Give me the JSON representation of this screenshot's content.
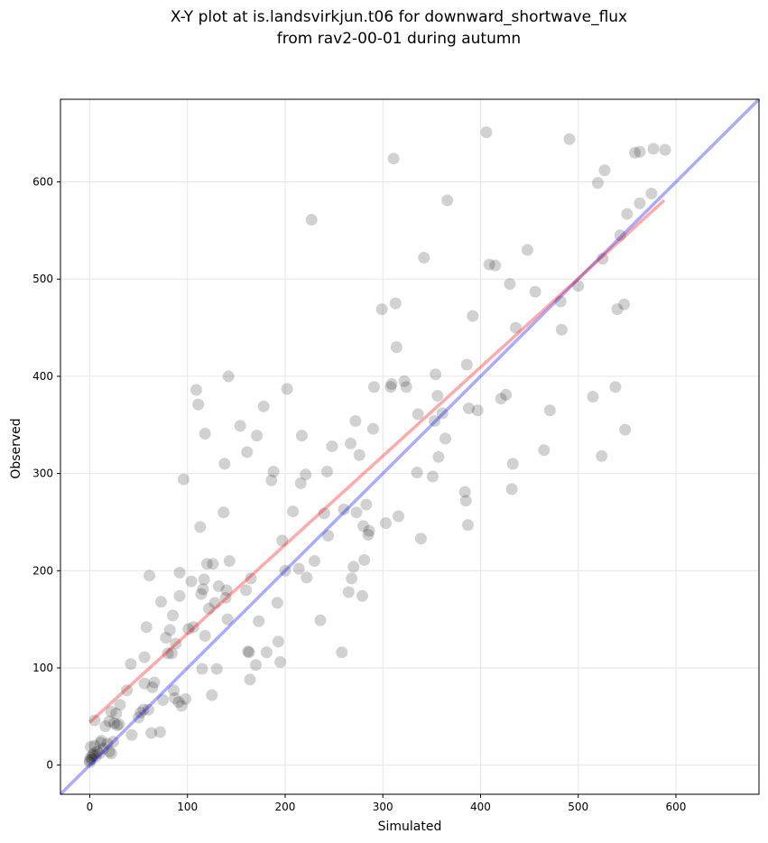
{
  "chart_data": {
    "type": "scatter",
    "title_line1": "X-Y plot at is.landsvirkjun.t06 for downward_shortwave_flux",
    "title_line2": "from rav2-00-01 during autumn",
    "xlabel": "Simulated",
    "ylabel": "Observed",
    "xlim": [
      -30,
      685
    ],
    "ylim": [
      -30,
      685
    ],
    "xticks": [
      0,
      100,
      200,
      300,
      400,
      500,
      600
    ],
    "yticks": [
      0,
      100,
      200,
      300,
      400,
      500,
      600
    ],
    "grid": true,
    "colors": {
      "points": "#000000",
      "fit_line": "#ff0000",
      "identity_line": "#0000ff",
      "grid": "#e6e6e6"
    },
    "fit_line": {
      "x": [
        0,
        588
      ],
      "y": [
        44,
        581
      ]
    },
    "identity_line": {
      "x": [
        -30,
        685
      ],
      "y": [
        -30,
        685
      ]
    },
    "points": [
      [
        0,
        3
      ],
      [
        0,
        5
      ],
      [
        1,
        8
      ],
      [
        2,
        6
      ],
      [
        3,
        10
      ],
      [
        1,
        19
      ],
      [
        4,
        12
      ],
      [
        5,
        20
      ],
      [
        6,
        9
      ],
      [
        8,
        14
      ],
      [
        10,
        12
      ],
      [
        11,
        23
      ],
      [
        12,
        25
      ],
      [
        14,
        17
      ],
      [
        16,
        40
      ],
      [
        18,
        22
      ],
      [
        20,
        14
      ],
      [
        20,
        45
      ],
      [
        22,
        12
      ],
      [
        22,
        55
      ],
      [
        24,
        24
      ],
      [
        25,
        43
      ],
      [
        27,
        53
      ],
      [
        28,
        41
      ],
      [
        30,
        42
      ],
      [
        31,
        62
      ],
      [
        5,
        46
      ],
      [
        38,
        77
      ],
      [
        42,
        104
      ],
      [
        43,
        31
      ],
      [
        50,
        49
      ],
      [
        52,
        54
      ],
      [
        55,
        57
      ],
      [
        56,
        111
      ],
      [
        56,
        84
      ],
      [
        58,
        142
      ],
      [
        60,
        57
      ],
      [
        61,
        195
      ],
      [
        63,
        33
      ],
      [
        64,
        80
      ],
      [
        66,
        85
      ],
      [
        72,
        34
      ],
      [
        73,
        168
      ],
      [
        75,
        67
      ],
      [
        78,
        131
      ],
      [
        80,
        115
      ],
      [
        82,
        139
      ],
      [
        84,
        115
      ],
      [
        85,
        154
      ],
      [
        86,
        77
      ],
      [
        87,
        69
      ],
      [
        88,
        125
      ],
      [
        91,
        65
      ],
      [
        92,
        198
      ],
      [
        92,
        174
      ],
      [
        94,
        61
      ],
      [
        96,
        294
      ],
      [
        98,
        68
      ],
      [
        101,
        140
      ],
      [
        104,
        189
      ],
      [
        106,
        142
      ],
      [
        109,
        386
      ],
      [
        111,
        371
      ],
      [
        113,
        245
      ],
      [
        114,
        176
      ],
      [
        115,
        99
      ],
      [
        116,
        181
      ],
      [
        117,
        191
      ],
      [
        118,
        341
      ],
      [
        118,
        133
      ],
      [
        120,
        207
      ],
      [
        122,
        161
      ],
      [
        125,
        72
      ],
      [
        126,
        207
      ],
      [
        128,
        167
      ],
      [
        130,
        99
      ],
      [
        132,
        184
      ],
      [
        137,
        260
      ],
      [
        138,
        310
      ],
      [
        139,
        172
      ],
      [
        140,
        180
      ],
      [
        141,
        150
      ],
      [
        142,
        400
      ],
      [
        143,
        210
      ],
      [
        154,
        349
      ],
      [
        160,
        180
      ],
      [
        161,
        322
      ],
      [
        162,
        117
      ],
      [
        163,
        116
      ],
      [
        164,
        88
      ],
      [
        165,
        192
      ],
      [
        170,
        103
      ],
      [
        171,
        339
      ],
      [
        173,
        148
      ],
      [
        178,
        369
      ],
      [
        181,
        116
      ],
      [
        186,
        293
      ],
      [
        188,
        302
      ],
      [
        192,
        167
      ],
      [
        193,
        127
      ],
      [
        195,
        106
      ],
      [
        197,
        231
      ],
      [
        200,
        200
      ],
      [
        202,
        387
      ],
      [
        208,
        261
      ],
      [
        214,
        202
      ],
      [
        216,
        290
      ],
      [
        217,
        339
      ],
      [
        221,
        299
      ],
      [
        222,
        193
      ],
      [
        227,
        561
      ],
      [
        230,
        210
      ],
      [
        236,
        149
      ],
      [
        240,
        259
      ],
      [
        243,
        302
      ],
      [
        244,
        236
      ],
      [
        248,
        328
      ],
      [
        258,
        116
      ],
      [
        260,
        263
      ],
      [
        265,
        178
      ],
      [
        267,
        331
      ],
      [
        268,
        192
      ],
      [
        270,
        204
      ],
      [
        272,
        354
      ],
      [
        273,
        260
      ],
      [
        276,
        319
      ],
      [
        279,
        174
      ],
      [
        280,
        246
      ],
      [
        281,
        211
      ],
      [
        283,
        268
      ],
      [
        285,
        237
      ],
      [
        286,
        241
      ],
      [
        290,
        346
      ],
      [
        291,
        389
      ],
      [
        299,
        469
      ],
      [
        303,
        249
      ],
      [
        308,
        389
      ],
      [
        309,
        392
      ],
      [
        311,
        624
      ],
      [
        313,
        475
      ],
      [
        314,
        430
      ],
      [
        316,
        256
      ],
      [
        322,
        395
      ],
      [
        324,
        389
      ],
      [
        335,
        301
      ],
      [
        336,
        361
      ],
      [
        339,
        233
      ],
      [
        342,
        522
      ],
      [
        351,
        297
      ],
      [
        353,
        354
      ],
      [
        354,
        402
      ],
      [
        356,
        380
      ],
      [
        357,
        317
      ],
      [
        361,
        362
      ],
      [
        364,
        336
      ],
      [
        366,
        581
      ],
      [
        384,
        281
      ],
      [
        385,
        272
      ],
      [
        386,
        412
      ],
      [
        387,
        247
      ],
      [
        388,
        367
      ],
      [
        392,
        462
      ],
      [
        397,
        365
      ],
      [
        406,
        651
      ],
      [
        409,
        515
      ],
      [
        415,
        514
      ],
      [
        421,
        377
      ],
      [
        426,
        381
      ],
      [
        430,
        495
      ],
      [
        432,
        284
      ],
      [
        433,
        310
      ],
      [
        436,
        450
      ],
      [
        448,
        530
      ],
      [
        456,
        487
      ],
      [
        465,
        324
      ],
      [
        471,
        365
      ],
      [
        482,
        477
      ],
      [
        483,
        448
      ],
      [
        491,
        644
      ],
      [
        500,
        493
      ],
      [
        515,
        379
      ],
      [
        520,
        599
      ],
      [
        524,
        318
      ],
      [
        525,
        521
      ],
      [
        527,
        612
      ],
      [
        538,
        389
      ],
      [
        540,
        469
      ],
      [
        543,
        545
      ],
      [
        547,
        474
      ],
      [
        548,
        345
      ],
      [
        550,
        567
      ],
      [
        558,
        630
      ],
      [
        563,
        578
      ],
      [
        563,
        631
      ],
      [
        575,
        588
      ],
      [
        577,
        634
      ],
      [
        589,
        633
      ]
    ]
  }
}
